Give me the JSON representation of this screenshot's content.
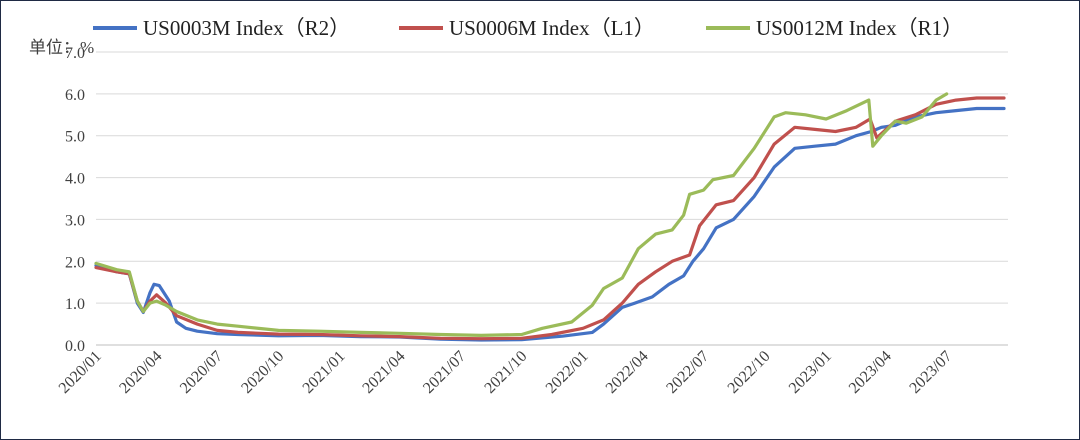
{
  "chart_data": {
    "type": "line",
    "unit_label": "单位：%",
    "ylim": [
      0,
      7
    ],
    "yticks": [
      "0.0",
      "1.0",
      "2.0",
      "3.0",
      "4.0",
      "5.0",
      "6.0",
      "7.0"
    ],
    "xlim": [
      "2020-01-01",
      "2023-10-01"
    ],
    "xticks": [
      {
        "date": "2020-01-01",
        "label": "2020/01"
      },
      {
        "date": "2020-04-01",
        "label": "2020/04"
      },
      {
        "date": "2020-07-01",
        "label": "2020/07"
      },
      {
        "date": "2020-10-01",
        "label": "2020/10"
      },
      {
        "date": "2021-01-01",
        "label": "2021/01"
      },
      {
        "date": "2021-04-01",
        "label": "2021/04"
      },
      {
        "date": "2021-07-01",
        "label": "2021/07"
      },
      {
        "date": "2021-10-01",
        "label": "2021/10"
      },
      {
        "date": "2022-01-01",
        "label": "2022/01"
      },
      {
        "date": "2022-04-01",
        "label": "2022/04"
      },
      {
        "date": "2022-07-01",
        "label": "2022/07"
      },
      {
        "date": "2022-10-01",
        "label": "2022/10"
      },
      {
        "date": "2023-01-01",
        "label": "2023/01"
      },
      {
        "date": "2023-04-01",
        "label": "2023/04"
      },
      {
        "date": "2023-07-01",
        "label": "2023/07"
      }
    ],
    "grid": true,
    "legend_position": "top",
    "series": [
      {
        "name": "US0003M Index（R2）",
        "color": "#4472C4",
        "points": [
          [
            "2020-01-01",
            1.9
          ],
          [
            "2020-02-01",
            1.75
          ],
          [
            "2020-02-20",
            1.7
          ],
          [
            "2020-03-03",
            1.0
          ],
          [
            "2020-03-12",
            0.78
          ],
          [
            "2020-03-22",
            1.25
          ],
          [
            "2020-03-28",
            1.45
          ],
          [
            "2020-04-05",
            1.42
          ],
          [
            "2020-04-20",
            1.05
          ],
          [
            "2020-05-01",
            0.55
          ],
          [
            "2020-05-15",
            0.4
          ],
          [
            "2020-06-01",
            0.33
          ],
          [
            "2020-07-01",
            0.27
          ],
          [
            "2020-08-01",
            0.25
          ],
          [
            "2020-10-01",
            0.22
          ],
          [
            "2020-12-01",
            0.23
          ],
          [
            "2021-02-01",
            0.2
          ],
          [
            "2021-04-01",
            0.19
          ],
          [
            "2021-06-01",
            0.14
          ],
          [
            "2021-08-01",
            0.12
          ],
          [
            "2021-10-01",
            0.13
          ],
          [
            "2021-12-01",
            0.21
          ],
          [
            "2022-01-15",
            0.3
          ],
          [
            "2022-02-01",
            0.5
          ],
          [
            "2022-03-01",
            0.9
          ],
          [
            "2022-03-20",
            1.0
          ],
          [
            "2022-04-15",
            1.15
          ],
          [
            "2022-05-10",
            1.45
          ],
          [
            "2022-06-01",
            1.65
          ],
          [
            "2022-06-15",
            2.0
          ],
          [
            "2022-07-01",
            2.3
          ],
          [
            "2022-07-20",
            2.8
          ],
          [
            "2022-08-15",
            3.0
          ],
          [
            "2022-09-15",
            3.55
          ],
          [
            "2022-10-15",
            4.25
          ],
          [
            "2022-11-15",
            4.7
          ],
          [
            "2022-12-15",
            4.75
          ],
          [
            "2023-01-15",
            4.8
          ],
          [
            "2023-02-15",
            5.0
          ],
          [
            "2023-03-10",
            5.1
          ],
          [
            "2023-03-25",
            5.2
          ],
          [
            "2023-04-15",
            5.25
          ],
          [
            "2023-05-15",
            5.45
          ],
          [
            "2023-06-15",
            5.55
          ],
          [
            "2023-07-15",
            5.6
          ],
          [
            "2023-08-15",
            5.65
          ],
          [
            "2023-09-25",
            5.65
          ]
        ]
      },
      {
        "name": "US0006M Index（L1）",
        "color": "#C0504D",
        "points": [
          [
            "2020-01-01",
            1.85
          ],
          [
            "2020-02-01",
            1.75
          ],
          [
            "2020-02-20",
            1.7
          ],
          [
            "2020-03-03",
            1.05
          ],
          [
            "2020-03-12",
            0.8
          ],
          [
            "2020-03-22",
            1.05
          ],
          [
            "2020-04-01",
            1.2
          ],
          [
            "2020-04-15",
            1.0
          ],
          [
            "2020-05-01",
            0.7
          ],
          [
            "2020-06-01",
            0.5
          ],
          [
            "2020-07-01",
            0.35
          ],
          [
            "2020-08-01",
            0.3
          ],
          [
            "2020-10-01",
            0.26
          ],
          [
            "2020-12-01",
            0.25
          ],
          [
            "2021-02-01",
            0.22
          ],
          [
            "2021-04-01",
            0.2
          ],
          [
            "2021-06-01",
            0.16
          ],
          [
            "2021-08-01",
            0.15
          ],
          [
            "2021-10-01",
            0.16
          ],
          [
            "2021-11-15",
            0.25
          ],
          [
            "2022-01-01",
            0.4
          ],
          [
            "2022-02-01",
            0.6
          ],
          [
            "2022-03-01",
            1.0
          ],
          [
            "2022-03-25",
            1.45
          ],
          [
            "2022-04-20",
            1.75
          ],
          [
            "2022-05-15",
            2.0
          ],
          [
            "2022-06-10",
            2.15
          ],
          [
            "2022-06-25",
            2.85
          ],
          [
            "2022-07-20",
            3.35
          ],
          [
            "2022-08-15",
            3.45
          ],
          [
            "2022-09-15",
            4.0
          ],
          [
            "2022-10-15",
            4.8
          ],
          [
            "2022-11-15",
            5.2
          ],
          [
            "2022-12-15",
            5.15
          ],
          [
            "2023-01-15",
            5.1
          ],
          [
            "2023-02-15",
            5.2
          ],
          [
            "2023-03-08",
            5.4
          ],
          [
            "2023-03-18",
            4.95
          ],
          [
            "2023-04-15",
            5.35
          ],
          [
            "2023-05-15",
            5.5
          ],
          [
            "2023-06-15",
            5.75
          ],
          [
            "2023-07-15",
            5.85
          ],
          [
            "2023-08-15",
            5.9
          ],
          [
            "2023-09-25",
            5.9
          ]
        ]
      },
      {
        "name": "US0012M Index（R1）",
        "color": "#9BBB59",
        "points": [
          [
            "2020-01-01",
            1.95
          ],
          [
            "2020-02-01",
            1.8
          ],
          [
            "2020-02-20",
            1.75
          ],
          [
            "2020-03-03",
            1.05
          ],
          [
            "2020-03-12",
            0.8
          ],
          [
            "2020-03-22",
            1.0
          ],
          [
            "2020-04-01",
            1.05
          ],
          [
            "2020-04-15",
            0.95
          ],
          [
            "2020-05-01",
            0.8
          ],
          [
            "2020-06-01",
            0.6
          ],
          [
            "2020-07-01",
            0.5
          ],
          [
            "2020-08-01",
            0.45
          ],
          [
            "2020-10-01",
            0.35
          ],
          [
            "2020-12-01",
            0.33
          ],
          [
            "2021-02-01",
            0.3
          ],
          [
            "2021-04-01",
            0.28
          ],
          [
            "2021-06-01",
            0.25
          ],
          [
            "2021-08-01",
            0.23
          ],
          [
            "2021-10-01",
            0.25
          ],
          [
            "2021-11-01",
            0.4
          ],
          [
            "2021-12-15",
            0.55
          ],
          [
            "2022-01-15",
            0.95
          ],
          [
            "2022-02-01",
            1.35
          ],
          [
            "2022-03-01",
            1.6
          ],
          [
            "2022-03-25",
            2.3
          ],
          [
            "2022-04-20",
            2.65
          ],
          [
            "2022-05-15",
            2.75
          ],
          [
            "2022-06-01",
            3.1
          ],
          [
            "2022-06-10",
            3.6
          ],
          [
            "2022-07-01",
            3.7
          ],
          [
            "2022-07-15",
            3.95
          ],
          [
            "2022-08-15",
            4.05
          ],
          [
            "2022-09-15",
            4.7
          ],
          [
            "2022-10-15",
            5.45
          ],
          [
            "2022-11-01",
            5.55
          ],
          [
            "2022-12-01",
            5.5
          ],
          [
            "2023-01-01",
            5.4
          ],
          [
            "2023-02-01",
            5.6
          ],
          [
            "2023-03-06",
            5.85
          ],
          [
            "2023-03-12",
            4.75
          ],
          [
            "2023-03-25",
            5.0
          ],
          [
            "2023-04-15",
            5.35
          ],
          [
            "2023-05-01",
            5.3
          ],
          [
            "2023-05-25",
            5.45
          ],
          [
            "2023-06-15",
            5.85
          ],
          [
            "2023-07-01",
            6.0
          ]
        ]
      }
    ]
  }
}
